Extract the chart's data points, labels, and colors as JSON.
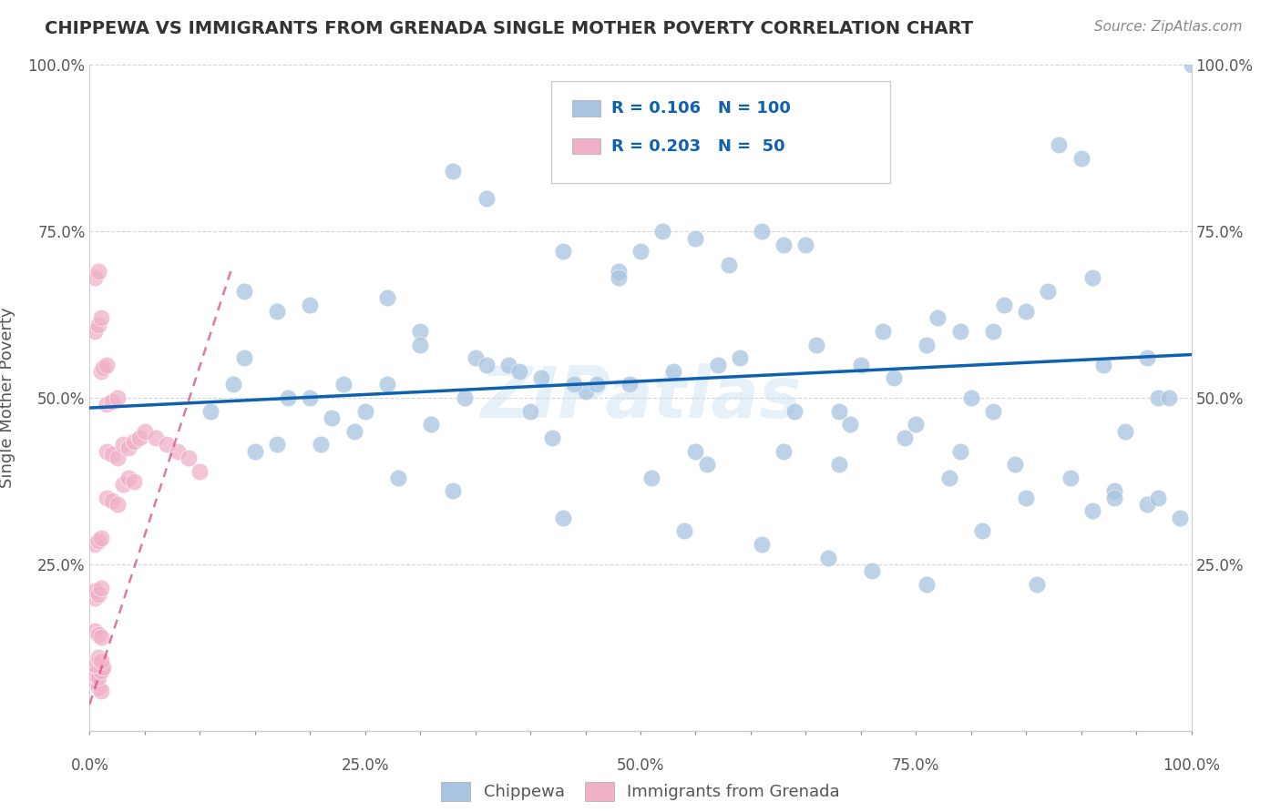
{
  "title": "CHIPPEWA VS IMMIGRANTS FROM GRENADA SINGLE MOTHER POVERTY CORRELATION CHART",
  "source": "Source: ZipAtlas.com",
  "ylabel": "Single Mother Poverty",
  "xlim": [
    0,
    1
  ],
  "ylim": [
    0,
    1
  ],
  "xtick_labels": [
    "0.0%",
    "",
    "",
    "",
    "",
    "25.0%",
    "",
    "",
    "",
    "",
    "50.0%",
    "",
    "",
    "",
    "",
    "75.0%",
    "",
    "",
    "",
    "",
    "100.0%"
  ],
  "xtick_positions": [
    0,
    0.05,
    0.1,
    0.15,
    0.2,
    0.25,
    0.3,
    0.35,
    0.4,
    0.45,
    0.5,
    0.55,
    0.6,
    0.65,
    0.7,
    0.75,
    0.8,
    0.85,
    0.9,
    0.95,
    1.0
  ],
  "ytick_labels": [
    "25.0%",
    "50.0%",
    "75.0%",
    "100.0%"
  ],
  "ytick_positions": [
    0.25,
    0.5,
    0.75,
    1.0
  ],
  "blue_color": "#a8c4e0",
  "pink_color": "#f0b0c8",
  "trend_blue": "#1060b0",
  "trend_pink": "#d04080",
  "watermark": "ZIPatlas",
  "legend_R_blue": "0.106",
  "legend_N_blue": "100",
  "legend_R_pink": "0.203",
  "legend_N_pink": "50",
  "blue_scatter_x": [
    0.33,
    0.36,
    0.14,
    0.17,
    0.14,
    0.2,
    0.22,
    0.13,
    0.2,
    0.27,
    0.3,
    0.35,
    0.3,
    0.38,
    0.41,
    0.45,
    0.5,
    0.55,
    0.48,
    0.52,
    0.43,
    0.48,
    0.61,
    0.63,
    0.65,
    0.58,
    0.7,
    0.73,
    0.68,
    0.75,
    0.8,
    0.82,
    0.85,
    0.79,
    0.88,
    0.9,
    0.92,
    0.96,
    0.97,
    1.0,
    0.63,
    0.56,
    0.51,
    0.44,
    0.39,
    0.27,
    0.24,
    0.21,
    0.17,
    0.15,
    0.34,
    0.46,
    0.53,
    0.59,
    0.66,
    0.72,
    0.77,
    0.83,
    0.87,
    0.91,
    0.94,
    0.98,
    0.36,
    0.4,
    0.49,
    0.57,
    0.64,
    0.69,
    0.74,
    0.79,
    0.84,
    0.89,
    0.93,
    0.96,
    0.99,
    0.11,
    0.23,
    0.28,
    0.33,
    0.43,
    0.54,
    0.61,
    0.67,
    0.71,
    0.76,
    0.81,
    0.86,
    0.93,
    0.97,
    0.18,
    0.25,
    0.31,
    0.42,
    0.55,
    0.68,
    0.78,
    0.85,
    0.91,
    0.76,
    0.82
  ],
  "blue_scatter_y": [
    0.84,
    0.8,
    0.66,
    0.63,
    0.56,
    0.5,
    0.47,
    0.52,
    0.64,
    0.65,
    0.6,
    0.56,
    0.58,
    0.55,
    0.53,
    0.51,
    0.72,
    0.74,
    0.69,
    0.75,
    0.72,
    0.68,
    0.75,
    0.73,
    0.73,
    0.7,
    0.55,
    0.53,
    0.48,
    0.46,
    0.5,
    0.48,
    0.63,
    0.6,
    0.88,
    0.86,
    0.55,
    0.56,
    0.5,
    1.0,
    0.42,
    0.4,
    0.38,
    0.52,
    0.54,
    0.52,
    0.45,
    0.43,
    0.43,
    0.42,
    0.5,
    0.52,
    0.54,
    0.56,
    0.58,
    0.6,
    0.62,
    0.64,
    0.66,
    0.68,
    0.45,
    0.5,
    0.55,
    0.48,
    0.52,
    0.55,
    0.48,
    0.46,
    0.44,
    0.42,
    0.4,
    0.38,
    0.36,
    0.34,
    0.32,
    0.48,
    0.52,
    0.38,
    0.36,
    0.32,
    0.3,
    0.28,
    0.26,
    0.24,
    0.22,
    0.3,
    0.22,
    0.35,
    0.35,
    0.5,
    0.48,
    0.46,
    0.44,
    0.42,
    0.4,
    0.38,
    0.35,
    0.33,
    0.58,
    0.6
  ],
  "pink_scatter_x": [
    0.005,
    0.008,
    0.01,
    0.005,
    0.008,
    0.01,
    0.012,
    0.005,
    0.008,
    0.01,
    0.005,
    0.008,
    0.01,
    0.005,
    0.005,
    0.008,
    0.01,
    0.005,
    0.008,
    0.01,
    0.015,
    0.02,
    0.025,
    0.03,
    0.035,
    0.04,
    0.015,
    0.02,
    0.025,
    0.03,
    0.035,
    0.04,
    0.045,
    0.05,
    0.015,
    0.02,
    0.025,
    0.01,
    0.012,
    0.015,
    0.005,
    0.008,
    0.01,
    0.005,
    0.008,
    0.06,
    0.07,
    0.08,
    0.09,
    0.1
  ],
  "pink_scatter_y": [
    0.075,
    0.065,
    0.06,
    0.085,
    0.08,
    0.09,
    0.095,
    0.1,
    0.11,
    0.105,
    0.15,
    0.145,
    0.14,
    0.2,
    0.21,
    0.205,
    0.215,
    0.28,
    0.285,
    0.29,
    0.35,
    0.345,
    0.34,
    0.37,
    0.38,
    0.375,
    0.42,
    0.415,
    0.41,
    0.43,
    0.425,
    0.435,
    0.44,
    0.45,
    0.49,
    0.495,
    0.5,
    0.54,
    0.545,
    0.55,
    0.6,
    0.61,
    0.62,
    0.68,
    0.69,
    0.44,
    0.43,
    0.42,
    0.41,
    0.39
  ],
  "blue_trend_x": [
    0.0,
    1.0
  ],
  "blue_trend_y": [
    0.485,
    0.565
  ],
  "pink_trend_x": [
    0.0,
    0.13
  ],
  "pink_trend_y": [
    0.04,
    0.7
  ]
}
